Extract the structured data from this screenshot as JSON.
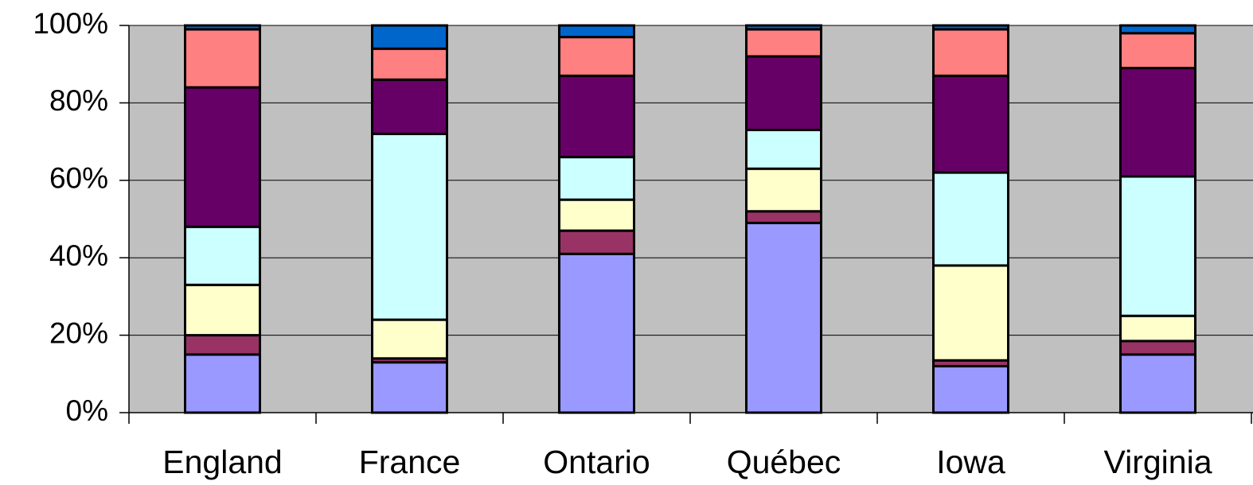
{
  "chart_data": {
    "type": "stacked_bar",
    "categories": [
      "England",
      "France",
      "Ontario",
      "Québec",
      "Iowa",
      "Virginia"
    ],
    "series": [
      {
        "color": "#9999ff",
        "values": [
          15,
          13,
          41,
          49,
          12,
          15
        ]
      },
      {
        "color": "#993366",
        "values": [
          5,
          1,
          6,
          3,
          1.5,
          3.5
        ]
      },
      {
        "color": "#ffffcc",
        "values": [
          13,
          10,
          8,
          11,
          24.5,
          6.5
        ]
      },
      {
        "color": "#ccffff",
        "values": [
          15,
          48,
          11,
          10,
          24,
          36
        ]
      },
      {
        "color": "#660066",
        "values": [
          36,
          14,
          21,
          19,
          25,
          28
        ]
      },
      {
        "color": "#ff8080",
        "values": [
          15,
          8,
          10,
          7,
          12,
          9
        ]
      },
      {
        "color": "#0066cc",
        "values": [
          1,
          6,
          3,
          1,
          1,
          2
        ]
      }
    ],
    "ylim": [
      0,
      100
    ],
    "yticks": [
      {
        "value": 0,
        "label": "0%"
      },
      {
        "value": 20,
        "label": "20%"
      },
      {
        "value": 40,
        "label": "40%"
      },
      {
        "value": 60,
        "label": "60%"
      },
      {
        "value": 80,
        "label": "80%"
      },
      {
        "value": 100,
        "label": "100%"
      }
    ],
    "grid": true,
    "plot_background": "#c0c0c0"
  }
}
